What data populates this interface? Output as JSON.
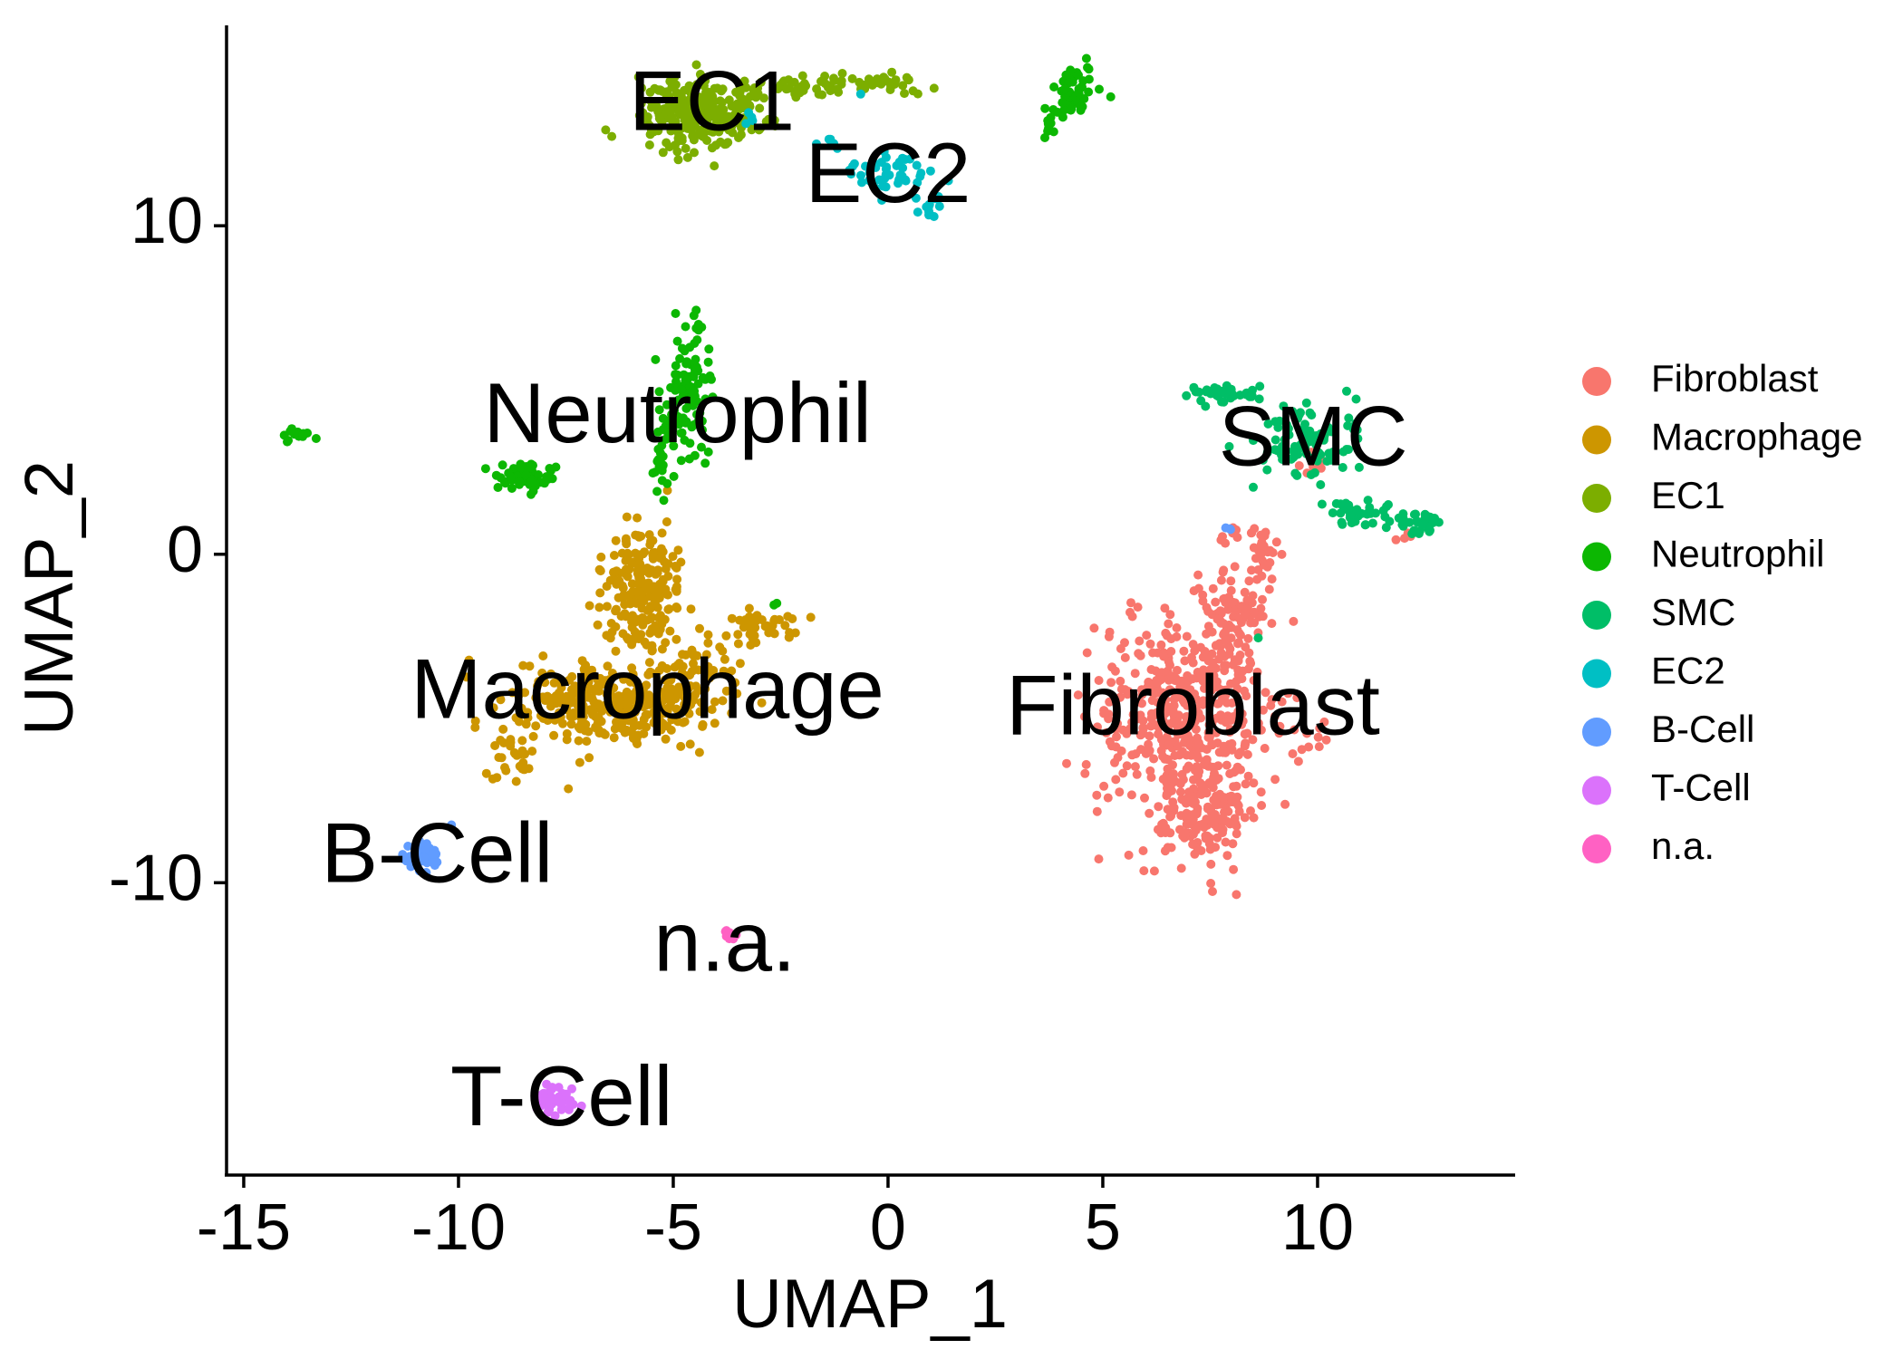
{
  "chart_data": {
    "type": "scatter",
    "title": "",
    "xlabel": "UMAP_1",
    "ylabel": "UMAP_2",
    "xlim": [
      -15.4,
      14.6
    ],
    "ylim": [
      -18.9,
      16.1
    ],
    "xticks": [
      -15,
      -10,
      -5,
      0,
      5,
      10
    ],
    "yticks": [
      -10,
      0,
      10
    ],
    "xtick_labels": [
      "-15",
      "-10",
      "-5",
      "0",
      "5",
      "10"
    ],
    "ytick_labels": [
      "-10",
      "0",
      "10"
    ],
    "grid": false,
    "legend_position": "right",
    "series": [
      {
        "name": "Fibroblast",
        "color": "#F8766D",
        "clusters": [
          {
            "cx": 6.8,
            "cy": -5.0,
            "sx": 1.0,
            "sy": 1.5,
            "n": 420
          },
          {
            "cx": 7.3,
            "cy": -7.8,
            "sx": 0.55,
            "sy": 0.8,
            "n": 160
          },
          {
            "cx": 8.0,
            "cy": -2.0,
            "sx": 0.45,
            "sy": 0.9,
            "n": 110
          },
          {
            "cx": 8.7,
            "cy": 0.0,
            "sx": 0.2,
            "sy": 0.4,
            "n": 25
          },
          {
            "cx": 8.2,
            "cy": 0.5,
            "sx": 0.2,
            "sy": 0.2,
            "n": 8
          },
          {
            "cx": 9.6,
            "cy": -5.5,
            "sx": 0.3,
            "sy": 0.3,
            "n": 10
          },
          {
            "cx": 9.8,
            "cy": 2.8,
            "sx": 0.2,
            "sy": 0.3,
            "n": 8
          },
          {
            "cx": 12.1,
            "cy": 0.6,
            "sx": 0.15,
            "sy": 0.2,
            "n": 5
          }
        ]
      },
      {
        "name": "Macrophage",
        "color": "#CD9600",
        "clusters": [
          {
            "cx": -6.4,
            "cy": -4.6,
            "sx": 1.2,
            "sy": 0.6,
            "n": 300
          },
          {
            "cx": -5.6,
            "cy": -1.5,
            "sx": 0.5,
            "sy": 1.1,
            "n": 170
          },
          {
            "cx": -6.0,
            "cy": -0.4,
            "sx": 0.35,
            "sy": 0.45,
            "n": 50
          },
          {
            "cx": -3.0,
            "cy": -2.2,
            "sx": 0.45,
            "sy": 0.25,
            "n": 45
          },
          {
            "cx": -8.6,
            "cy": -6.0,
            "sx": 0.45,
            "sy": 0.55,
            "n": 30
          },
          {
            "cx": -4.3,
            "cy": -3.6,
            "sx": 0.5,
            "sy": 0.4,
            "n": 40
          }
        ]
      },
      {
        "name": "EC1",
        "color": "#7CAE00",
        "clusters": [
          {
            "cx": -4.5,
            "cy": 13.4,
            "sx": 0.7,
            "sy": 0.5,
            "n": 260
          },
          {
            "cx": -1.6,
            "cy": 14.2,
            "sx": 1.0,
            "sy": 0.15,
            "n": 70
          },
          {
            "cx": 0.0,
            "cy": 14.4,
            "sx": 0.25,
            "sy": 0.1,
            "n": 15
          }
        ]
      },
      {
        "name": "Neutrophil",
        "color": "#0CB702",
        "clusters": [
          {
            "cx": 4.3,
            "cy": 14.1,
            "sx": 0.25,
            "sy": 0.3,
            "n": 55
          },
          {
            "cx": 3.8,
            "cy": 13.2,
            "sx": 0.15,
            "sy": 0.2,
            "n": 10
          },
          {
            "cx": -4.7,
            "cy": 4.8,
            "sx": 0.3,
            "sy": 1.0,
            "n": 110
          },
          {
            "cx": -5.3,
            "cy": 2.7,
            "sx": 0.15,
            "sy": 0.5,
            "n": 20
          },
          {
            "cx": -8.4,
            "cy": 2.4,
            "sx": 0.35,
            "sy": 0.2,
            "n": 65
          },
          {
            "cx": -13.8,
            "cy": 3.6,
            "sx": 0.2,
            "sy": 0.1,
            "n": 14
          },
          {
            "cx": -2.6,
            "cy": -1.6,
            "sx": 0.05,
            "sy": 0.1,
            "n": 2
          }
        ]
      },
      {
        "name": "SMC",
        "color": "#00BE67",
        "clusters": [
          {
            "cx": 9.7,
            "cy": 3.5,
            "sx": 0.6,
            "sy": 0.6,
            "n": 90
          },
          {
            "cx": 7.8,
            "cy": 4.9,
            "sx": 0.4,
            "sy": 0.15,
            "n": 35
          },
          {
            "cx": 11.2,
            "cy": 1.2,
            "sx": 0.6,
            "sy": 0.2,
            "n": 40
          },
          {
            "cx": 12.5,
            "cy": 1.0,
            "sx": 0.35,
            "sy": 0.15,
            "n": 30
          },
          {
            "cx": 8.6,
            "cy": -2.5,
            "sx": 0.05,
            "sy": 0.05,
            "n": 1
          }
        ]
      },
      {
        "name": "EC2",
        "color": "#00BFC4",
        "clusters": [
          {
            "cx": 0.0,
            "cy": 11.6,
            "sx": 0.6,
            "sy": 0.4,
            "n": 45
          },
          {
            "cx": 1.0,
            "cy": 10.5,
            "sx": 0.2,
            "sy": 0.2,
            "n": 12
          },
          {
            "cx": -1.3,
            "cy": 12.6,
            "sx": 0.15,
            "sy": 0.1,
            "n": 5
          },
          {
            "cx": -3.2,
            "cy": 13.2,
            "sx": 0.1,
            "sy": 0.3,
            "n": 4
          },
          {
            "cx": -0.6,
            "cy": 14.0,
            "sx": 0.05,
            "sy": 0.05,
            "n": 1
          }
        ]
      },
      {
        "name": "B-Cell",
        "color": "#619CFF",
        "clusters": [
          {
            "cx": -10.8,
            "cy": -9.2,
            "sx": 0.2,
            "sy": 0.2,
            "n": 55
          },
          {
            "cx": -10.2,
            "cy": -8.2,
            "sx": 0.05,
            "sy": 0.05,
            "n": 1
          },
          {
            "cx": 7.9,
            "cy": 0.8,
            "sx": 0.1,
            "sy": 0.05,
            "n": 3
          }
        ]
      },
      {
        "name": "T-Cell",
        "color": "#DB72FB",
        "clusters": [
          {
            "cx": -7.8,
            "cy": -16.6,
            "sx": 0.22,
            "sy": 0.2,
            "n": 65
          }
        ]
      },
      {
        "name": "n.a.",
        "color": "#FF61C3",
        "clusters": [
          {
            "cx": -3.7,
            "cy": -11.6,
            "sx": 0.1,
            "sy": 0.08,
            "n": 12
          }
        ]
      }
    ],
    "cluster_labels": [
      {
        "text": "EC1",
        "x": -4.1,
        "y": 13.6
      },
      {
        "text": "EC2",
        "x": 0.0,
        "y": 11.4
      },
      {
        "text": "Neutrophil",
        "x": -4.9,
        "y": 4.1
      },
      {
        "text": "SMC",
        "x": 9.9,
        "y": 3.4
      },
      {
        "text": "Macrophage",
        "x": -5.6,
        "y": -4.3
      },
      {
        "text": "Fibroblast",
        "x": 7.1,
        "y": -4.8
      },
      {
        "text": "B-Cell",
        "x": -10.5,
        "y": -9.3
      },
      {
        "text": "n.a.",
        "x": -3.8,
        "y": -12.0
      },
      {
        "text": "T-Cell",
        "x": -7.6,
        "y": -16.7
      }
    ]
  }
}
